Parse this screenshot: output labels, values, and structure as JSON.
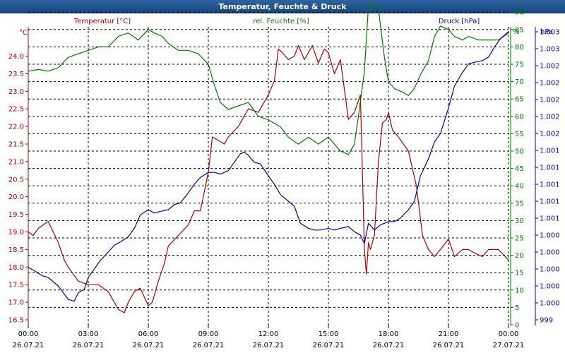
{
  "window": {
    "title": "Temperatur, Feuchte & Druck"
  },
  "chart_data": {
    "type": "line",
    "title": "Temperatur, Feuchte & Druck",
    "grid": true,
    "colors": {
      "temperature": "#b00000",
      "humidity": "#007800",
      "pressure": "#0000b0",
      "grid": "#000000"
    },
    "x_ticks": [
      {
        "time": "00:00",
        "date": "26.07.21"
      },
      {
        "time": "03:00",
        "date": "26.07.21"
      },
      {
        "time": "06:00",
        "date": "26.07.21"
      },
      {
        "time": "09:00",
        "date": "26.07.21"
      },
      {
        "time": "12:00",
        "date": "26.07.21"
      },
      {
        "time": "15:00",
        "date": "26.07.21"
      },
      {
        "time": "18:00",
        "date": "26.07.21"
      },
      {
        "time": "21:00",
        "date": "26.07.21"
      },
      {
        "time": "00:00",
        "date": "27.07.21"
      }
    ],
    "x_range_hours": [
      0,
      24
    ],
    "axes": {
      "temperature": {
        "unit_label": "°C",
        "legend": "Temperatur [°C]",
        "ylim": [
          16.4,
          24.9
        ],
        "ticks": [
          "16.5",
          "17.0",
          "17.5",
          "18.0",
          "18.5",
          "19.0",
          "19.5",
          "20.0",
          "20.5",
          "21.0",
          "21.5",
          "22.0",
          "22.5",
          "23.0",
          "23.5",
          "24.0"
        ]
      },
      "humidity": {
        "unit_label": "%",
        "legend": "rel. Feuchte [%]",
        "ylim": [
          0,
          96
        ],
        "ticks": [
          "0",
          "5",
          "10",
          "15",
          "20",
          "25",
          "30",
          "35",
          "40",
          "45",
          "50",
          "55",
          "60",
          "65",
          "70",
          "75",
          "80",
          "85",
          "90",
          "95"
        ]
      },
      "pressure": {
        "unit_label": "hPa",
        "legend": "Druck [hPa]",
        "ticks": [
          "999",
          "1.000",
          "1.000",
          "1.000",
          "1.000",
          "1.000",
          "1.001",
          "1.001",
          "1.001",
          "1.001",
          "1.001",
          "1.002",
          "1.002",
          "1.002",
          "1.002",
          "1.002",
          "1.003",
          "1.003"
        ]
      }
    },
    "series": [
      {
        "name": "Temperatur [°C]",
        "axis": "temperature",
        "hours": [
          0,
          0.25,
          0.5,
          1,
          1.5,
          1.8,
          2,
          2.5,
          3,
          3.5,
          4,
          4.5,
          4.8,
          5,
          5.3,
          5.6,
          6,
          6.2,
          6.5,
          6.8,
          7,
          7.5,
          8,
          8.3,
          8.6,
          9,
          9.2,
          9.5,
          9.8,
          10,
          10.5,
          11,
          11.5,
          12,
          12.3,
          12.5,
          12.7,
          13,
          13.3,
          13.5,
          13.8,
          14.2,
          14.5,
          14.8,
          15,
          15.3,
          15.6,
          16,
          16.3,
          16.6,
          16.8,
          16.9,
          17,
          17.1,
          17.3,
          17.5,
          17.7,
          17.9,
          18,
          18.2,
          18.5,
          19,
          19.4,
          19.7,
          20,
          20.3,
          20.6,
          21,
          21.3,
          21.7,
          22,
          22.3,
          22.7,
          23,
          23.5,
          24
        ],
        "values": [
          19.0,
          18.9,
          19.1,
          19.3,
          18.7,
          18.2,
          18.0,
          17.6,
          17.5,
          17.5,
          17.3,
          16.8,
          16.7,
          17.0,
          17.3,
          17.4,
          16.9,
          17.0,
          17.6,
          18.1,
          18.6,
          18.9,
          19.2,
          19.6,
          19.6,
          20.7,
          21.7,
          21.6,
          21.5,
          21.7,
          22.0,
          22.5,
          22.4,
          22.9,
          23.3,
          24.2,
          24.1,
          23.9,
          24.0,
          24.3,
          23.9,
          24.3,
          23.8,
          24.2,
          24.1,
          23.5,
          23.9,
          22.2,
          22.4,
          22.9,
          18.5,
          17.8,
          18.7,
          18.5,
          18.9,
          21.0,
          22.1,
          22.2,
          22.4,
          21.9,
          21.7,
          21.3,
          20.3,
          18.9,
          18.5,
          18.3,
          18.5,
          18.8,
          18.3,
          18.5,
          18.5,
          18.4,
          18.3,
          18.5,
          18.5,
          18.2
        ]
      },
      {
        "name": "rel. Feuchte [%]",
        "axis": "humidity",
        "hours": [
          0,
          0.5,
          1,
          1.5,
          2,
          2.5,
          3,
          3.5,
          4,
          4.5,
          5,
          5.5,
          6,
          6.3,
          6.7,
          7,
          7.5,
          8,
          8.5,
          9,
          9.3,
          9.6,
          10,
          10.5,
          11,
          11.5,
          12,
          12.3,
          12.6,
          13,
          13.5,
          14,
          14.5,
          15,
          15.3,
          15.6,
          16,
          16.3,
          16.5,
          16.8,
          17,
          17.2,
          17.5,
          17.8,
          18,
          18.3,
          18.7,
          19,
          19.3,
          19.6,
          20,
          20.3,
          20.6,
          21,
          21.3,
          21.7,
          22,
          22.5,
          23,
          23.5,
          24
        ],
        "values": [
          73,
          73.5,
          73,
          74,
          77,
          78,
          79,
          80,
          80,
          83,
          84,
          82,
          85,
          84,
          83,
          81,
          79,
          79,
          78,
          75,
          69,
          64,
          62,
          63,
          64,
          60,
          59,
          58,
          57,
          54,
          52,
          54,
          52,
          54,
          52,
          50,
          49,
          52,
          60,
          73,
          92,
          92,
          91,
          77,
          70,
          68,
          67,
          66,
          68,
          72,
          76,
          83,
          86,
          85,
          83,
          82,
          83,
          82,
          82,
          82,
          84
        ]
      },
      {
        "name": "Druck [hPa]",
        "axis": "pressure",
        "hours": [
          0,
          0.3,
          0.7,
          1,
          1.5,
          2,
          2.3,
          2.5,
          2.8,
          3,
          3.3,
          3.6,
          4,
          4.3,
          4.6,
          5,
          5.3,
          5.6,
          6,
          6.3,
          6.6,
          7,
          7.3,
          7.6,
          8,
          8.3,
          8.6,
          9,
          9.3,
          9.6,
          10,
          10.3,
          10.6,
          10.8,
          11,
          11.3,
          11.6,
          12,
          12.3,
          12.6,
          13,
          13.3,
          13.6,
          14,
          14.3,
          14.6,
          15,
          15.3,
          15.6,
          16,
          16.3,
          16.6,
          16.8,
          17,
          17.3,
          17.6,
          18,
          18.3,
          18.6,
          19,
          19.3,
          19.6,
          20,
          20.3,
          20.6,
          21,
          21.3,
          21.7,
          22,
          22.3,
          22.7,
          23,
          23.3,
          23.6,
          24
        ],
        "values": [
          3.1,
          2.9,
          2.6,
          2.5,
          2.0,
          1.2,
          1.1,
          1.6,
          1.8,
          2.5,
          3.0,
          3.5,
          4.0,
          4.4,
          4.6,
          4.9,
          5.4,
          6.2,
          6.5,
          6.3,
          6.4,
          6.5,
          6.8,
          6.9,
          7.5,
          8.0,
          8.4,
          8.7,
          8.7,
          8.6,
          8.8,
          9.3,
          9.8,
          9.9,
          9.7,
          9.3,
          9.2,
          8.5,
          8.0,
          7.4,
          7.0,
          6.7,
          5.7,
          5.4,
          5.3,
          5.3,
          5.4,
          5.3,
          5.4,
          5.5,
          5.2,
          5.0,
          4.5,
          5.7,
          5.3,
          5.6,
          5.8,
          5.8,
          6.0,
          6.5,
          7.0,
          8.5,
          9.5,
          10.5,
          11.0,
          12.5,
          13.8,
          14.6,
          15.1,
          15.2,
          15.3,
          15.5,
          16.1,
          16.6,
          17.0
        ]
      }
    ]
  }
}
